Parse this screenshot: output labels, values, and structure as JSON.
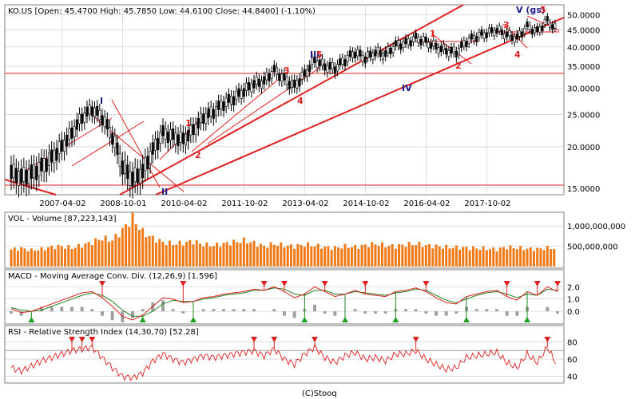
{
  "footer": "(C)Stooq",
  "colors": {
    "wave_red": "#e02020",
    "wave_blue": "#1a1a8c",
    "volume": "#f07a18",
    "macd_fast": "#e02020",
    "macd_signal": "#208020",
    "rsi": "#e02020",
    "grid": "#c8c8c8"
  },
  "chart_data": [
    {
      "type": "line",
      "panel": "price",
      "header": "KO.US [Open: 45.4700   High: 45.7850   Low: 44.6100   Close: 44.8400] (-1.10%)",
      "x_ticks": [
        "2007-04-02",
        "2008-10-01",
        "2010-04-02",
        "2011-10-02",
        "2013-04-02",
        "2014-10-02",
        "2016-04-02",
        "2017-10-02"
      ],
      "y_scale": "log",
      "y_ticks": [
        "50.0000",
        "45.0000",
        "40.0000",
        "35.0000",
        "30.0000",
        "25.0000",
        "20.0000",
        "15.0000"
      ],
      "ylim": [
        14.5,
        53
      ],
      "x": [
        "2006-01-01",
        "2006-04-01",
        "2006-07-01",
        "2006-10-01",
        "2007-01-01",
        "2007-04-01",
        "2007-07-01",
        "2007-10-01",
        "2008-01-01",
        "2008-04-01",
        "2008-07-01",
        "2008-10-01",
        "2009-01-01",
        "2009-04-01",
        "2009-07-01",
        "2009-10-01",
        "2010-01-01",
        "2010-04-01",
        "2010-07-01",
        "2010-10-01",
        "2011-01-01",
        "2011-04-01",
        "2011-07-01",
        "2011-10-01",
        "2012-01-01",
        "2012-04-01",
        "2012-07-01",
        "2012-10-01",
        "2013-01-01",
        "2013-04-01",
        "2013-07-01",
        "2013-10-01",
        "2014-01-01",
        "2014-04-01",
        "2014-07-01",
        "2014-10-01",
        "2015-01-01",
        "2015-04-01",
        "2015-07-01",
        "2015-10-01",
        "2016-01-01",
        "2016-04-01",
        "2016-07-01",
        "2016-10-01",
        "2017-01-01",
        "2017-04-01",
        "2017-07-01",
        "2017-10-01",
        "2018-01-01",
        "2018-04-01",
        "2018-07-01",
        "2018-10-01",
        "2019-01-01",
        "2019-04-01",
        "2019-06-15"
      ],
      "close": [
        16.8,
        16.2,
        16.6,
        17.4,
        18.5,
        20.0,
        22.0,
        24.5,
        26.0,
        24.5,
        21.5,
        17.5,
        16.0,
        16.8,
        19.5,
        22.0,
        21.5,
        21.0,
        22.5,
        24.5,
        25.5,
        27.0,
        28.0,
        29.5,
        31.0,
        31.5,
        34.0,
        32.0,
        30.5,
        33.0,
        36.5,
        35.0,
        34.5,
        36.5,
        38.5,
        37.0,
        38.5,
        38.0,
        40.5,
        41.0,
        42.5,
        41.5,
        40.0,
        39.0,
        38.5,
        41.5,
        43.0,
        44.0,
        45.0,
        43.5,
        42.5,
        46.0,
        44.5,
        48.0,
        44.84
      ]
    },
    {
      "type": "bar",
      "panel": "volume",
      "header": "VOL - Volume [87,223,143]",
      "y_ticks": [
        "1,000,000,000",
        "500,000,000"
      ],
      "ylim": [
        0,
        1300000000
      ],
      "values_description": "monthly volume bars, peak ~1.2B in late 2008, recent ~450M",
      "values": [
        420,
        450,
        400,
        430,
        480,
        500,
        460,
        520,
        600,
        700,
        650,
        900,
        1200,
        850,
        700,
        600,
        560,
        580,
        620,
        540,
        520,
        560,
        600,
        640,
        580,
        500,
        560,
        520,
        500,
        540,
        520,
        480,
        460,
        500,
        480,
        520,
        560,
        520,
        500,
        540,
        560,
        520,
        500,
        480,
        470,
        460,
        450,
        440,
        420,
        480,
        460,
        440,
        430,
        460,
        450
      ]
    },
    {
      "type": "line",
      "panel": "macd",
      "header": "MACD - Moving Average Conv. Div. (12,26,9) [1.596]",
      "y_ticks": [
        "2.0",
        "1.0",
        "0.0"
      ],
      "ylim": [
        -0.9,
        2.6
      ],
      "series": [
        {
          "name": "MACD",
          "values": [
            0.2,
            -0.1,
            0.0,
            0.3,
            0.6,
            0.9,
            1.2,
            1.5,
            1.6,
            1.1,
            0.4,
            -0.4,
            -0.7,
            -0.3,
            0.4,
            1.1,
            1.0,
            0.7,
            0.8,
            1.1,
            1.2,
            1.4,
            1.5,
            1.6,
            1.8,
            1.7,
            2.0,
            1.6,
            1.1,
            1.4,
            2.0,
            1.6,
            1.2,
            1.4,
            1.7,
            1.4,
            1.3,
            1.2,
            1.6,
            1.7,
            1.9,
            1.6,
            1.1,
            0.7,
            0.6,
            1.2,
            1.4,
            1.6,
            1.7,
            1.2,
            0.9,
            1.6,
            1.3,
            2.0,
            1.6
          ]
        },
        {
          "name": "Signal",
          "values": [
            0.3,
            0.1,
            0.0,
            0.1,
            0.4,
            0.7,
            1.0,
            1.3,
            1.5,
            1.3,
            0.8,
            0.1,
            -0.4,
            -0.4,
            0.0,
            0.6,
            0.9,
            0.8,
            0.8,
            1.0,
            1.1,
            1.3,
            1.4,
            1.5,
            1.7,
            1.7,
            1.9,
            1.8,
            1.4,
            1.3,
            1.7,
            1.7,
            1.4,
            1.4,
            1.6,
            1.5,
            1.4,
            1.3,
            1.5,
            1.6,
            1.8,
            1.7,
            1.3,
            0.9,
            0.7,
            1.0,
            1.3,
            1.5,
            1.6,
            1.4,
            1.1,
            1.4,
            1.3,
            1.8,
            1.7
          ]
        }
      ]
    },
    {
      "type": "line",
      "panel": "rsi",
      "header": "RSI - Relative Strength Index (14,30,70) [52.28]",
      "y_ticks": [
        "80",
        "60",
        "40"
      ],
      "ylim": [
        34,
        88
      ],
      "series": [
        {
          "name": "RSI",
          "values": [
            50,
            46,
            52,
            58,
            62,
            66,
            70,
            72,
            74,
            62,
            50,
            40,
            38,
            44,
            58,
            66,
            60,
            56,
            60,
            64,
            62,
            64,
            66,
            68,
            70,
            64,
            72,
            60,
            54,
            66,
            74,
            62,
            56,
            64,
            68,
            60,
            62,
            58,
            66,
            66,
            70,
            60,
            54,
            48,
            50,
            62,
            64,
            66,
            68,
            56,
            50,
            66,
            56,
            74,
            52
          ]
        }
      ]
    }
  ]
}
